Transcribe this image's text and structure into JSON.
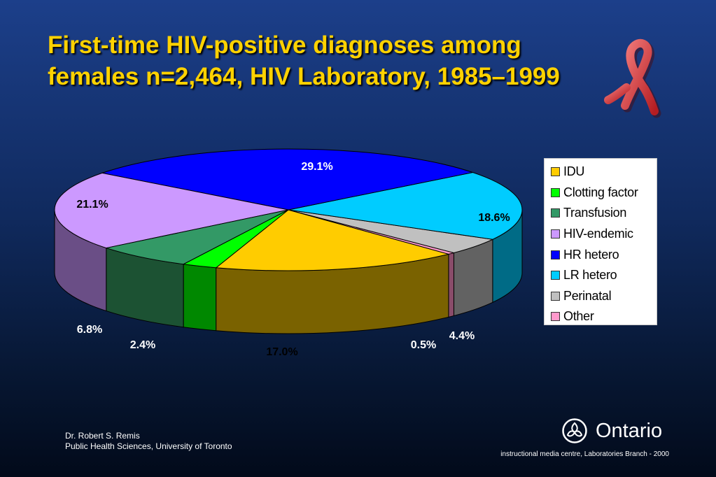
{
  "slide": {
    "title_line1": "First-time HIV-positive diagnoses among",
    "title_line2": "females n=2,464, HIV Laboratory, 1985–1999"
  },
  "chart_data": {
    "type": "pie",
    "style": "3d-exploded-none",
    "title": "",
    "legend_position": "right",
    "series": [
      {
        "slices": [
          {
            "label": "IDU",
            "value": 17.0,
            "display": "17.0%",
            "color": "#ffcc00",
            "side_color": "#7a6200"
          },
          {
            "label": "Other",
            "value": 0.5,
            "display": "0.5%",
            "color": "#ff99cc",
            "side_color": "#8a4c6a"
          },
          {
            "label": "Perinatal",
            "value": 4.4,
            "display": "4.4%",
            "color": "#c0c0c0",
            "side_color": "#626262"
          },
          {
            "label": "LR hetero",
            "value": 18.6,
            "display": "18.6%",
            "color": "#00ccff",
            "side_color": "#006b86"
          },
          {
            "label": "HR hetero",
            "value": 29.1,
            "display": "29.1%",
            "color": "#0000ff",
            "side_color": "#000088"
          },
          {
            "label": "HIV-endemic",
            "value": 21.1,
            "display": "21.1%",
            "color": "#cc99ff",
            "side_color": "#6a4e86"
          },
          {
            "label": "Transfusion",
            "value": 6.8,
            "display": "6.8%",
            "color": "#339966",
            "side_color": "#1c5233"
          },
          {
            "label": "Clotting factor",
            "value": 2.4,
            "display": "2.4%",
            "color": "#00ff00",
            "side_color": "#008800"
          }
        ]
      }
    ],
    "legend_order": [
      "IDU",
      "Clotting factor",
      "Transfusion",
      "HIV-endemic",
      "HR hetero",
      "LR hetero",
      "Perinatal",
      "Other"
    ]
  },
  "footer": {
    "credit_line1": "Dr. Robert S. Remis",
    "credit_line2": "Public Health Sciences, University of Toronto",
    "brand": "Ontario",
    "note": "instructional media centre, Laboratories Branch - 2000"
  },
  "icons": {
    "ribbon": "aids-ribbon-icon",
    "logo": "ontario-trillium-logo-icon"
  }
}
